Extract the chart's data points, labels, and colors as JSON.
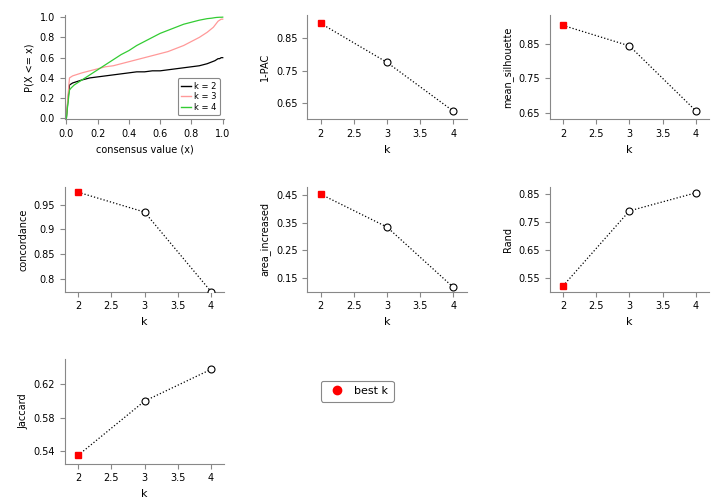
{
  "pac": {
    "k": [
      2,
      3,
      4
    ],
    "values": [
      0.895,
      0.775,
      0.625
    ],
    "best_k_idx": 0,
    "ylim": [
      0.6,
      0.92
    ],
    "yticks": [
      0.65,
      0.75,
      0.85
    ],
    "ylabel": "1-PAC"
  },
  "mean_sil": {
    "k": [
      2,
      3,
      4
    ],
    "values": [
      0.905,
      0.845,
      0.655
    ],
    "best_k_idx": 0,
    "ylim": [
      0.63,
      0.935
    ],
    "yticks": [
      0.65,
      0.75,
      0.85
    ],
    "ylabel": "mean_silhouette"
  },
  "concordance": {
    "k": [
      2,
      3,
      4
    ],
    "values": [
      0.975,
      0.935,
      0.775
    ],
    "best_k_idx": 0,
    "ylim": [
      0.775,
      0.985
    ],
    "yticks": [
      0.8,
      0.85,
      0.9,
      0.95
    ],
    "ylabel": "concordance"
  },
  "area_increased": {
    "k": [
      2,
      3,
      4
    ],
    "values": [
      0.455,
      0.335,
      0.115
    ],
    "best_k_idx": 0,
    "ylim": [
      0.1,
      0.48
    ],
    "yticks": [
      0.15,
      0.25,
      0.35,
      0.45
    ],
    "ylabel": "area_increased"
  },
  "rand": {
    "k": [
      2,
      3,
      4
    ],
    "values": [
      0.52,
      0.79,
      0.855
    ],
    "best_k_idx": 0,
    "ylim": [
      0.5,
      0.875
    ],
    "yticks": [
      0.55,
      0.65,
      0.75,
      0.85
    ],
    "ylabel": "Rand"
  },
  "jaccard": {
    "k": [
      2,
      3,
      4
    ],
    "values": [
      0.535,
      0.6,
      0.638
    ],
    "best_k_idx": 0,
    "ylim": [
      0.525,
      0.65
    ],
    "yticks": [
      0.54,
      0.58,
      0.62
    ],
    "ylabel": "Jaccard"
  },
  "colors": {
    "best_k": "#FF0000",
    "open_circle_face": "white",
    "open_circle_edge": "#000000",
    "line": "#000000",
    "k2": "#000000",
    "k3": "#FF9999",
    "k4": "#33CC33"
  },
  "ecdf": {
    "k2_x": [
      0.0,
      0.01,
      0.02,
      0.04,
      0.06,
      0.08,
      0.1,
      0.15,
      0.2,
      0.25,
      0.3,
      0.35,
      0.4,
      0.45,
      0.5,
      0.55,
      0.6,
      0.65,
      0.7,
      0.75,
      0.8,
      0.85,
      0.9,
      0.95,
      0.97,
      0.98,
      0.99,
      1.0
    ],
    "k2_y": [
      0.0,
      0.18,
      0.33,
      0.35,
      0.36,
      0.37,
      0.38,
      0.4,
      0.41,
      0.42,
      0.43,
      0.44,
      0.45,
      0.46,
      0.46,
      0.47,
      0.47,
      0.48,
      0.49,
      0.5,
      0.51,
      0.52,
      0.54,
      0.57,
      0.59,
      0.59,
      0.6,
      0.6
    ],
    "k3_x": [
      0.0,
      0.01,
      0.02,
      0.04,
      0.06,
      0.08,
      0.1,
      0.15,
      0.2,
      0.25,
      0.3,
      0.35,
      0.4,
      0.45,
      0.5,
      0.55,
      0.6,
      0.65,
      0.7,
      0.75,
      0.8,
      0.85,
      0.9,
      0.94,
      0.96,
      0.97,
      0.98,
      0.99,
      1.0
    ],
    "k3_y": [
      0.0,
      0.22,
      0.4,
      0.42,
      0.43,
      0.44,
      0.45,
      0.47,
      0.49,
      0.51,
      0.52,
      0.54,
      0.56,
      0.58,
      0.6,
      0.62,
      0.64,
      0.66,
      0.69,
      0.72,
      0.76,
      0.8,
      0.85,
      0.9,
      0.94,
      0.96,
      0.97,
      0.98,
      0.98
    ],
    "k4_x": [
      0.0,
      0.01,
      0.02,
      0.03,
      0.05,
      0.08,
      0.1,
      0.15,
      0.2,
      0.25,
      0.3,
      0.35,
      0.4,
      0.45,
      0.5,
      0.55,
      0.6,
      0.65,
      0.7,
      0.75,
      0.8,
      0.85,
      0.9,
      0.93,
      0.95,
      0.96,
      0.97,
      0.98,
      0.99,
      1.0
    ],
    "k4_y": [
      0.0,
      0.15,
      0.28,
      0.3,
      0.33,
      0.36,
      0.38,
      0.43,
      0.48,
      0.53,
      0.58,
      0.63,
      0.67,
      0.72,
      0.76,
      0.8,
      0.84,
      0.87,
      0.9,
      0.93,
      0.95,
      0.97,
      0.985,
      0.99,
      0.995,
      0.997,
      0.998,
      0.999,
      0.999,
      1.0
    ]
  }
}
